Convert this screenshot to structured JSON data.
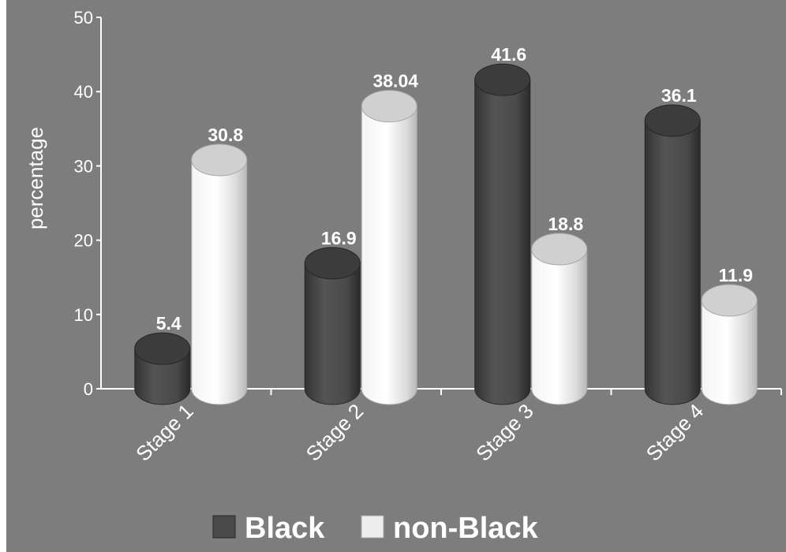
{
  "chart_data": {
    "type": "bar",
    "style": "3d-cylinder",
    "categories": [
      "Stage 1",
      "Stage 2",
      "Stage 3",
      "Stage 4"
    ],
    "series": [
      {
        "name": "Black",
        "values": [
          5.4,
          16.9,
          41.6,
          36.1
        ],
        "data_labels": [
          "5.4",
          "16.9",
          "41.6",
          "36.1"
        ],
        "color": "#4a4a4a"
      },
      {
        "name": "non-Black",
        "values": [
          30.8,
          38.04,
          18.8,
          11.9
        ],
        "data_labels": [
          "30.8",
          "38.04",
          "18.8",
          "11.9"
        ],
        "color": "#ededed"
      }
    ],
    "ylabel": "percentage",
    "ylim": [
      0,
      50
    ],
    "yticks": [
      0,
      10,
      20,
      30,
      40,
      50
    ],
    "ytick_labels": [
      "0",
      "10",
      "20",
      "30",
      "40",
      "50"
    ],
    "grid": false,
    "legend_position": "bottom",
    "background_color": "#7d7d7d"
  }
}
